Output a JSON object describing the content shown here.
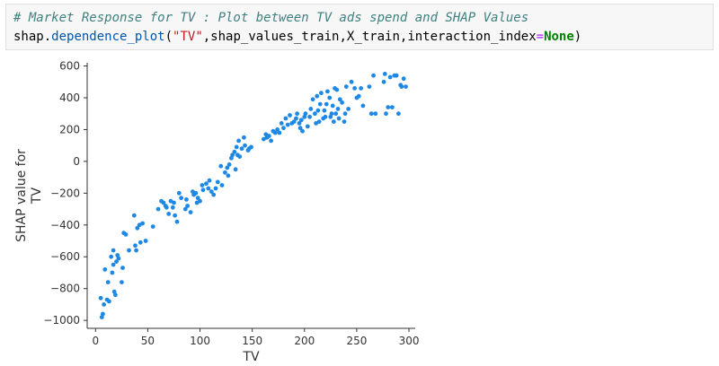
{
  "cell": {
    "comment": "# Market Response for TV : Plot between TV ads spend and SHAP Values",
    "code": {
      "module": "shap",
      "dot": ".",
      "function": "dependence_plot",
      "open_paren": "(",
      "arg_string": "\"TV\"",
      "comma_args": ",shap_values_train,X_train,",
      "kwarg_name": "interaction_index",
      "equals": "=",
      "kwarg_value": "None",
      "close_paren": ")"
    }
  },
  "chart_data": {
    "type": "scatter",
    "xlabel": "TV",
    "ylabel": "SHAP value for TV",
    "ylabel_lines": [
      "SHAP value for",
      "TV"
    ],
    "xlim": [
      -8,
      306
    ],
    "ylim": [
      -1050,
      620
    ],
    "xticks": [
      0,
      50,
      100,
      150,
      200,
      250,
      300
    ],
    "yticks": [
      -1000,
      -800,
      -600,
      -400,
      -200,
      0,
      200,
      400,
      600
    ],
    "ytick_labels": [
      "−1000",
      "−800",
      "−600",
      "−400",
      "−200",
      "0",
      "200",
      "400",
      "600"
    ],
    "point_color": "#1e88e5",
    "grid": false,
    "points": [
      [
        5,
        -860
      ],
      [
        6,
        -980
      ],
      [
        7,
        -960
      ],
      [
        8,
        -900
      ],
      [
        9,
        -680
      ],
      [
        11,
        -870
      ],
      [
        12,
        -760
      ],
      [
        13,
        -880
      ],
      [
        15,
        -600
      ],
      [
        16,
        -700
      ],
      [
        17,
        -560
      ],
      [
        17,
        -650
      ],
      [
        18,
        -820
      ],
      [
        19,
        -840
      ],
      [
        20,
        -630
      ],
      [
        21,
        -590
      ],
      [
        22,
        -610
      ],
      [
        25,
        -760
      ],
      [
        26,
        -670
      ],
      [
        27,
        -450
      ],
      [
        29,
        -460
      ],
      [
        32,
        -560
      ],
      [
        37,
        -340
      ],
      [
        38,
        -530
      ],
      [
        39,
        -560
      ],
      [
        40,
        -420
      ],
      [
        42,
        -400
      ],
      [
        43,
        -510
      ],
      [
        45,
        -390
      ],
      [
        48,
        -500
      ],
      [
        55,
        -410
      ],
      [
        60,
        -300
      ],
      [
        63,
        -250
      ],
      [
        65,
        -260
      ],
      [
        67,
        -280
      ],
      [
        68,
        -290
      ],
      [
        70,
        -330
      ],
      [
        72,
        -250
      ],
      [
        74,
        -290
      ],
      [
        75,
        -260
      ],
      [
        76,
        -340
      ],
      [
        78,
        -380
      ],
      [
        80,
        -200
      ],
      [
        82,
        -230
      ],
      [
        86,
        -300
      ],
      [
        87,
        -240
      ],
      [
        88,
        -280
      ],
      [
        91,
        -320
      ],
      [
        93,
        -190
      ],
      [
        94,
        -210
      ],
      [
        96,
        -200
      ],
      [
        97,
        -260
      ],
      [
        98,
        -230
      ],
      [
        100,
        -250
      ],
      [
        102,
        -150
      ],
      [
        103,
        -180
      ],
      [
        106,
        -140
      ],
      [
        108,
        -170
      ],
      [
        109,
        -120
      ],
      [
        111,
        -190
      ],
      [
        113,
        -210
      ],
      [
        115,
        -170
      ],
      [
        117,
        -130
      ],
      [
        120,
        -30
      ],
      [
        121,
        -150
      ],
      [
        124,
        -70
      ],
      [
        126,
        -40
      ],
      [
        127,
        -90
      ],
      [
        128,
        -20
      ],
      [
        130,
        20
      ],
      [
        131,
        40
      ],
      [
        133,
        60
      ],
      [
        134,
        -50
      ],
      [
        135,
        90
      ],
      [
        136,
        40
      ],
      [
        137,
        130
      ],
      [
        138,
        30
      ],
      [
        140,
        80
      ],
      [
        142,
        150
      ],
      [
        143,
        100
      ],
      [
        146,
        70
      ],
      [
        147,
        80
      ],
      [
        149,
        90
      ],
      [
        161,
        140
      ],
      [
        163,
        170
      ],
      [
        164,
        150
      ],
      [
        166,
        160
      ],
      [
        168,
        130
      ],
      [
        170,
        190
      ],
      [
        172,
        180
      ],
      [
        174,
        200
      ],
      [
        176,
        180
      ],
      [
        178,
        240
      ],
      [
        180,
        210
      ],
      [
        182,
        270
      ],
      [
        184,
        230
      ],
      [
        186,
        290
      ],
      [
        188,
        240
      ],
      [
        190,
        250
      ],
      [
        192,
        270
      ],
      [
        193,
        300
      ],
      [
        195,
        240
      ],
      [
        196,
        210
      ],
      [
        197,
        260
      ],
      [
        198,
        190
      ],
      [
        200,
        280
      ],
      [
        201,
        300
      ],
      [
        203,
        220
      ],
      [
        205,
        280
      ],
      [
        206,
        330
      ],
      [
        208,
        390
      ],
      [
        210,
        300
      ],
      [
        211,
        240
      ],
      [
        212,
        410
      ],
      [
        213,
        320
      ],
      [
        214,
        250
      ],
      [
        215,
        360
      ],
      [
        216,
        430
      ],
      [
        218,
        270
      ],
      [
        219,
        320
      ],
      [
        220,
        280
      ],
      [
        221,
        360
      ],
      [
        222,
        440
      ],
      [
        224,
        400
      ],
      [
        225,
        280
      ],
      [
        226,
        300
      ],
      [
        227,
        350
      ],
      [
        228,
        250
      ],
      [
        229,
        460
      ],
      [
        230,
        300
      ],
      [
        231,
        450
      ],
      [
        232,
        330
      ],
      [
        233,
        270
      ],
      [
        234,
        390
      ],
      [
        236,
        370
      ],
      [
        238,
        250
      ],
      [
        239,
        300
      ],
      [
        240,
        470
      ],
      [
        242,
        330
      ],
      [
        245,
        500
      ],
      [
        248,
        460
      ],
      [
        250,
        400
      ],
      [
        252,
        410
      ],
      [
        254,
        460
      ],
      [
        256,
        350
      ],
      [
        262,
        470
      ],
      [
        264,
        300
      ],
      [
        266,
        540
      ],
      [
        268,
        300
      ],
      [
        276,
        500
      ],
      [
        277,
        550
      ],
      [
        278,
        300
      ],
      [
        280,
        340
      ],
      [
        282,
        530
      ],
      [
        284,
        340
      ],
      [
        286,
        540
      ],
      [
        288,
        540
      ],
      [
        290,
        300
      ],
      [
        292,
        480
      ],
      [
        293,
        470
      ],
      [
        295,
        520
      ],
      [
        297,
        470
      ]
    ]
  }
}
